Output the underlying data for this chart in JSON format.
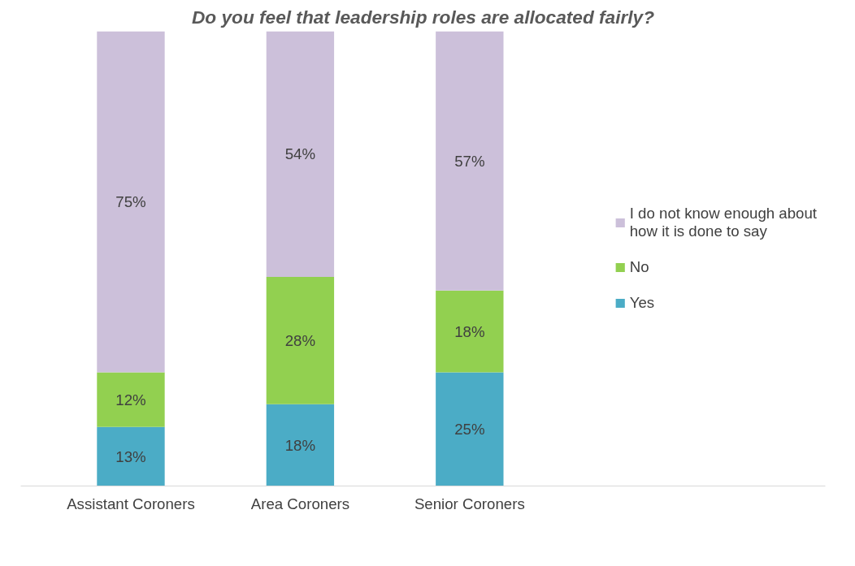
{
  "chart_data": {
    "type": "bar",
    "stacked": true,
    "title": "Do you feel that leadership roles are allocated fairly?",
    "categories": [
      "Assistant Coroners",
      "Area Coroners",
      "Senior Coroners"
    ],
    "series": [
      {
        "name": "Yes",
        "color": "#4bacc6",
        "values": [
          13,
          18,
          25
        ],
        "value_labels": [
          "13%",
          "18%",
          "25%"
        ]
      },
      {
        "name": "No",
        "color": "#92d050",
        "values": [
          12,
          28,
          18
        ],
        "value_labels": [
          "12%",
          "28%",
          "18%"
        ]
      },
      {
        "name": "I do not know enough about how it is done to say",
        "color": "#ccc0da",
        "values": [
          75,
          54,
          57
        ],
        "value_labels": [
          "75%",
          "54%",
          "57%"
        ]
      }
    ],
    "legend": "right",
    "grid": false
  }
}
